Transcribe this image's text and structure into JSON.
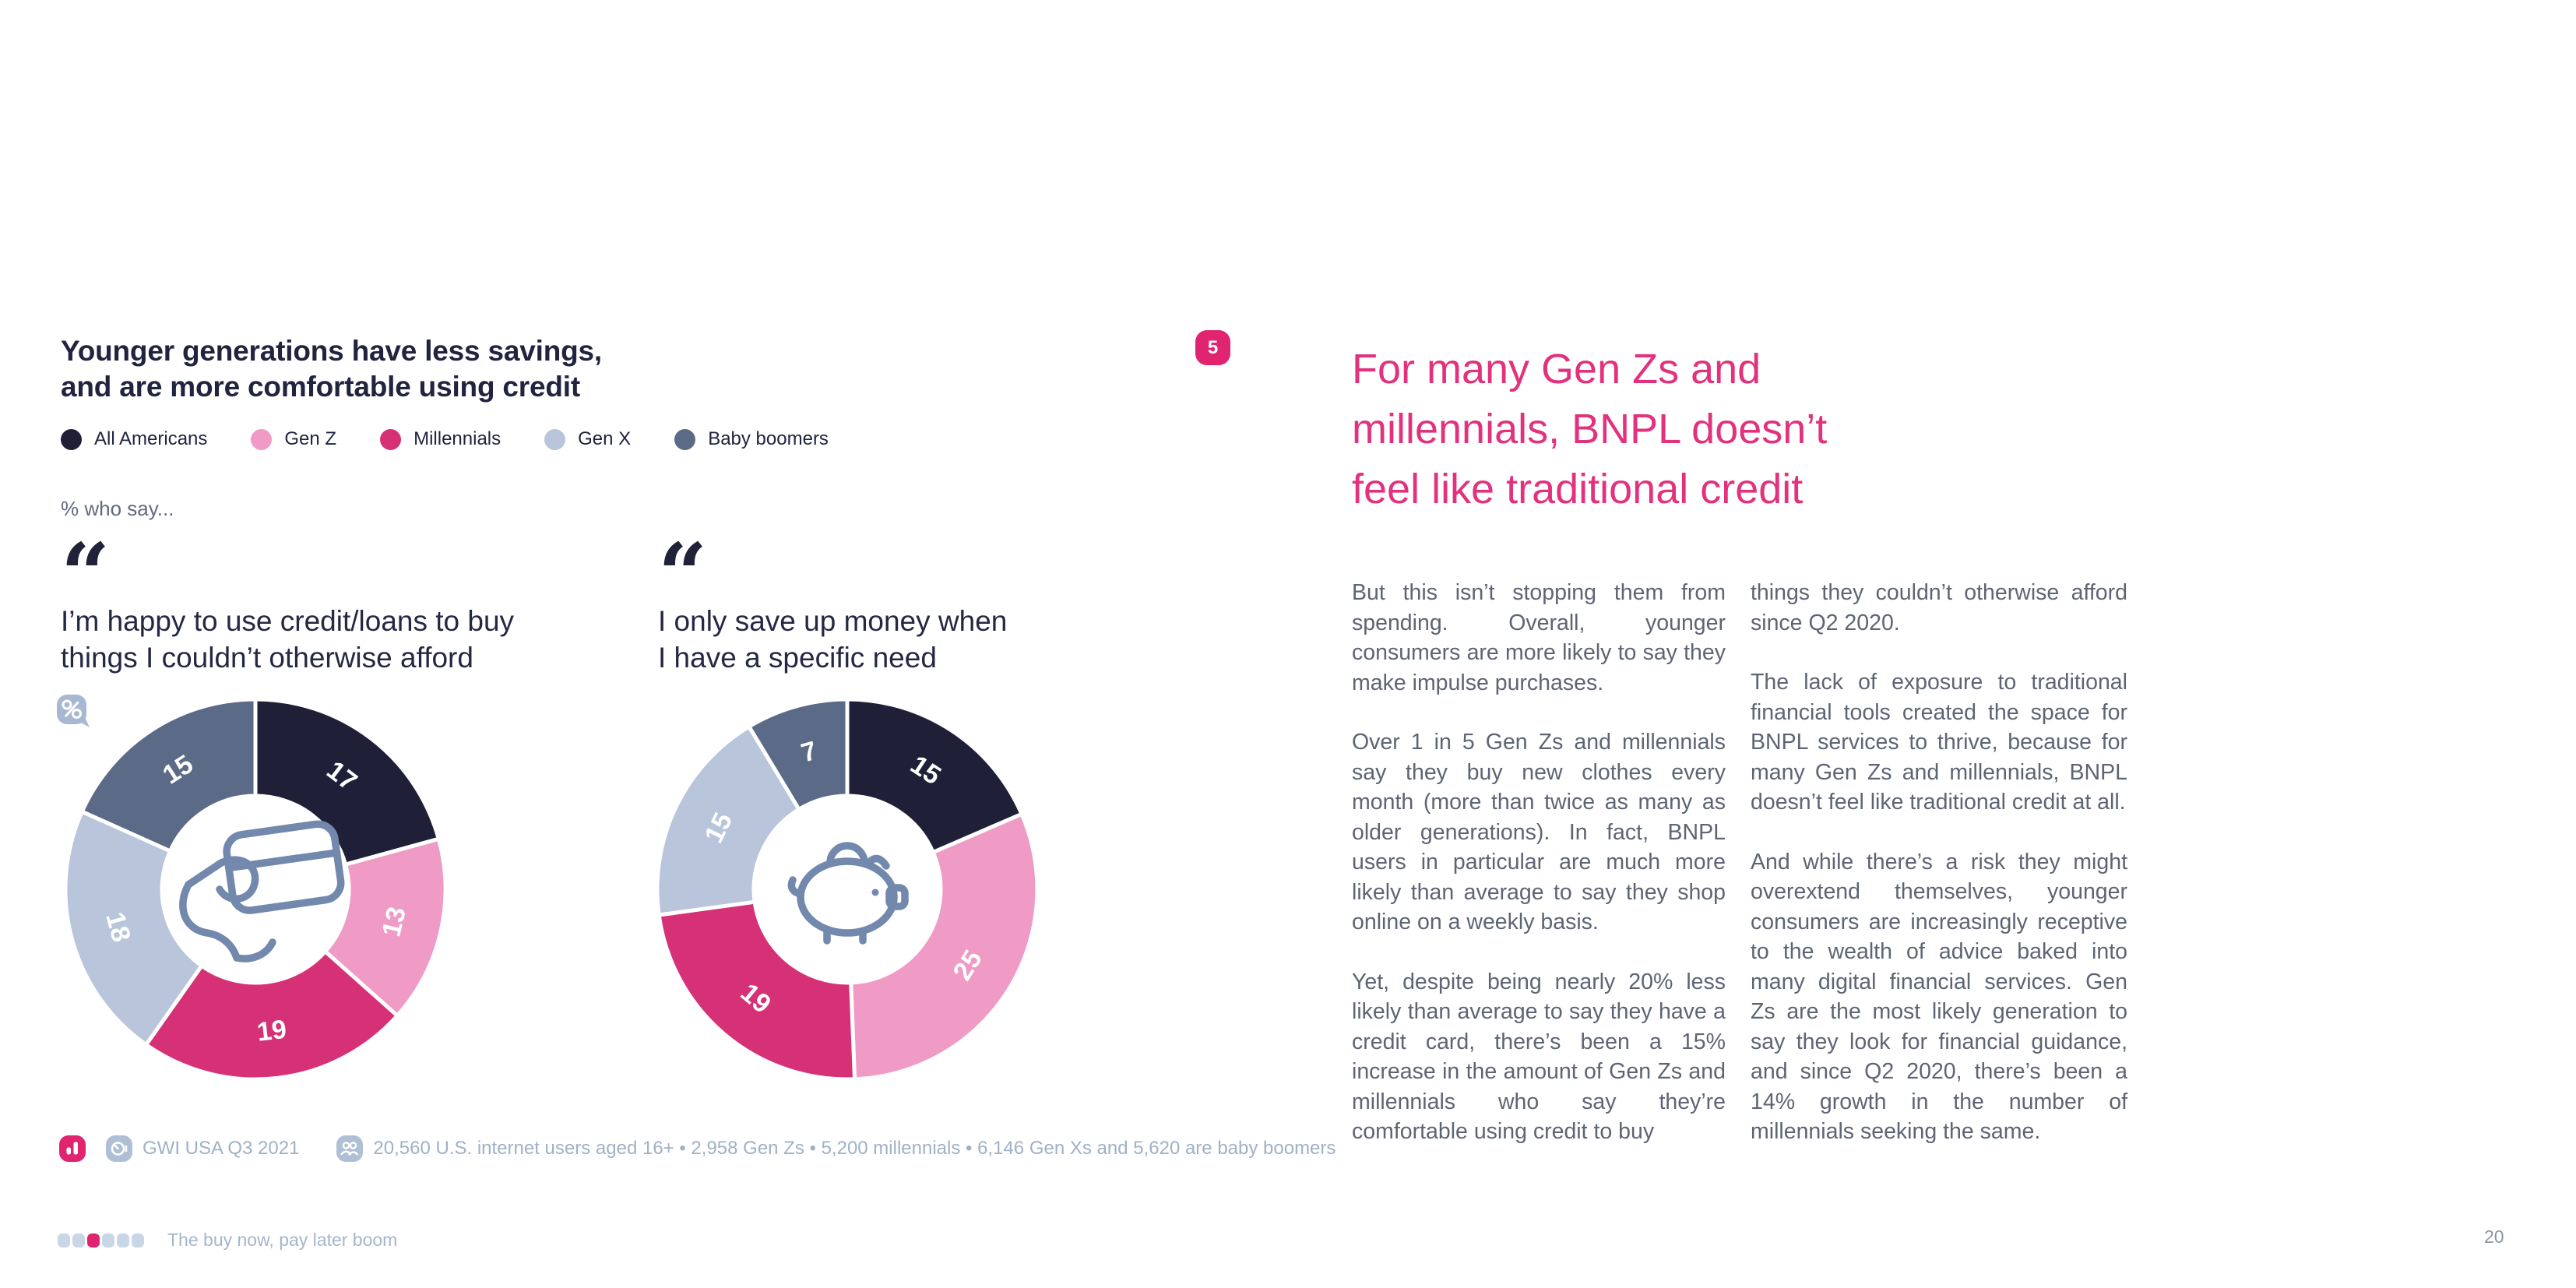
{
  "page": {
    "left": {
      "title": "Younger generations have less savings,\nand are more comfortable using credit",
      "slide_number": "5",
      "subtitle": "% who say...",
      "quote_mark": "“",
      "legend": [
        {
          "label": "All Americans",
          "color": "#1f2038"
        },
        {
          "label": "Gen Z",
          "color": "#ef9bc5"
        },
        {
          "label": "Millennials",
          "color": "#d63177"
        },
        {
          "label": "Gen X",
          "color": "#b8c5db"
        },
        {
          "label": "Baby boomers",
          "color": "#5b6a87"
        }
      ],
      "quotes": [
        {
          "text": "I’m happy to use credit/loans to buy\nthings I couldn’t otherwise afford"
        },
        {
          "text": "I only save up money when\nI have a specific need"
        }
      ],
      "source": {
        "survey": "GWI USA Q3 2021",
        "sample": "20,560 U.S. internet users aged 16+ • 2,958 Gen Zs • 5,200 millennials • 6,146 Gen Xs and 5,620 are baby boomers"
      },
      "footer": {
        "report_title": "The buy now, pay later boom",
        "dot_count": 6,
        "active_index": 2,
        "active_color": "#e0246f",
        "inactive_color": "#c9d6e5"
      }
    },
    "right": {
      "heading": "For many Gen Zs and\nmillennials, BNPL doesn’t\nfeel like traditional credit",
      "columns": [
        [
          "But this isn’t stopping them from spending. Overall, younger consumers are more likely to say they make impulse purchases.",
          "Over 1 in 5 Gen Zs and millennials say they buy new clothes every month (more than twice as many as older generations). In fact, BNPL users in particular are much more likely than average to say they shop online on a weekly basis.",
          "Yet, despite being nearly 20% less likely than average to say they have a credit card, there’s been a 15% increase in the amount of Gen Zs and millennials who say they’re comfortable using credit to buy"
        ],
        [
          "things they couldn’t otherwise afford since Q2 2020.",
          "The lack of exposure to traditional financial tools created the space for BNPL services to thrive, because for many Gen Zs and millennials, BNPL doesn’t feel like traditional credit at all.",
          "And while there’s a risk they might overextend themselves, younger consumers are increasingly receptive to the wealth of advice baked into many digital financial services. Gen Zs are the most likely generation to say they look for financial guidance, and since Q2 2020, there’s been a 14% growth in the number of millennials seeking the same."
        ]
      ],
      "page_number": "20"
    }
  },
  "chart_data": [
    {
      "type": "donut",
      "title": "I’m happy to use credit/loans to buy things I couldn’t otherwise afford",
      "unit": "% who say",
      "categories": [
        "All Americans",
        "Gen Z",
        "Millennials",
        "Gen X",
        "Baby boomers"
      ],
      "values": [
        17,
        13,
        19,
        18,
        15
      ],
      "colors": [
        "#1f2038",
        "#ef9bc5",
        "#d63177",
        "#b8c5db",
        "#5b6a87"
      ],
      "start_angle": 0,
      "direction": "clockwise",
      "center_icon": "credit-card-hand"
    },
    {
      "type": "donut",
      "title": "I only save up money when I have a specific need",
      "unit": "% who say",
      "categories": [
        "All Americans",
        "Gen Z",
        "Millennials",
        "Gen X",
        "Baby boomers"
      ],
      "values": [
        15,
        25,
        19,
        15,
        7
      ],
      "colors": [
        "#1f2038",
        "#ef9bc5",
        "#d63177",
        "#b8c5db",
        "#5b6a87"
      ],
      "start_angle": 0,
      "direction": "clockwise",
      "center_icon": "piggy-bank"
    }
  ]
}
